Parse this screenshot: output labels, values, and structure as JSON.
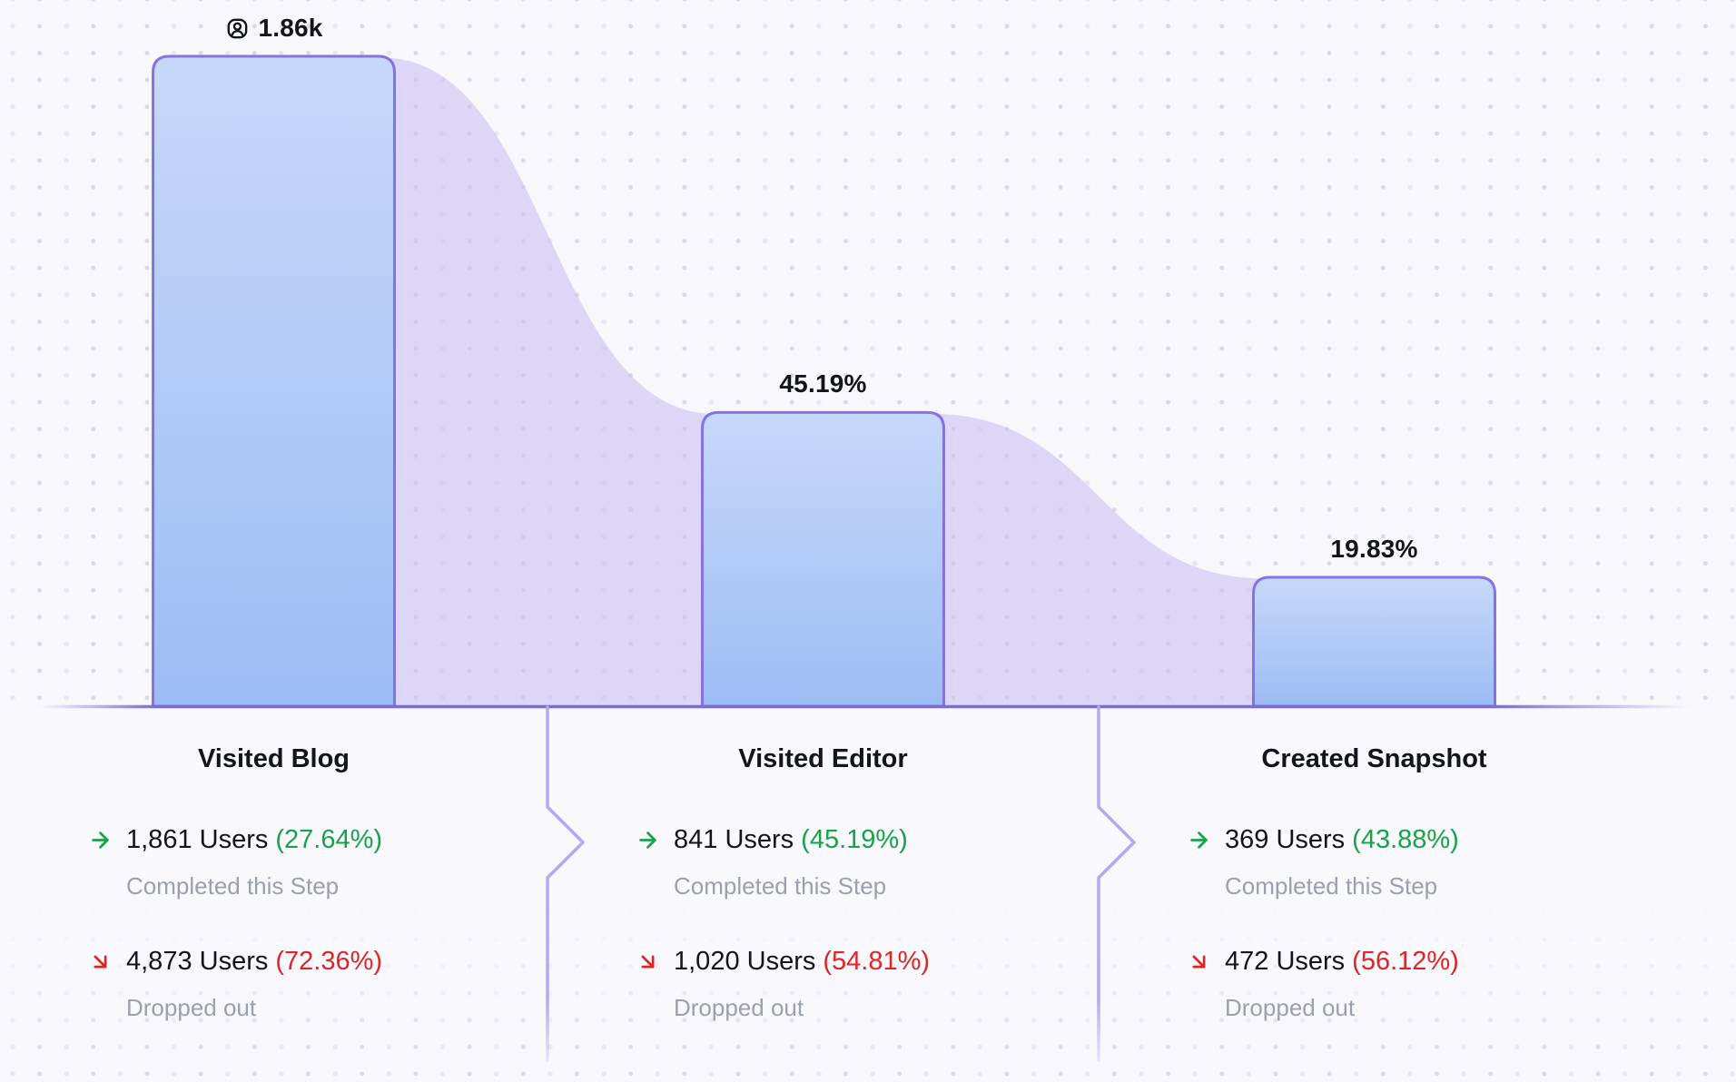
{
  "chart_data": {
    "type": "funnel",
    "title": "",
    "unit": "Users",
    "max_value": 1861,
    "steps": [
      {
        "name": "Visited Blog",
        "users": 1861,
        "bar_label": "1.86k",
        "completed_text": "1,861 Users",
        "completed_pct": "(27.64%)",
        "dropped_text": "4,873 Users",
        "dropped_pct": "(72.36%)"
      },
      {
        "name": "Visited Editor",
        "users": 841,
        "bar_label": "45.19%",
        "completed_text": "841 Users",
        "completed_pct": "(45.19%)",
        "dropped_text": "1,020 Users",
        "dropped_pct": "(54.81%)"
      },
      {
        "name": "Created Snapshot",
        "users": 369,
        "bar_label": "19.83%",
        "completed_text": "369 Users",
        "completed_pct": "(43.88%)",
        "dropped_text": "472 Users",
        "dropped_pct": "(56.12%)"
      }
    ],
    "captions": {
      "completed": "Completed this Step",
      "dropped": "Dropped out"
    },
    "icons": {
      "first_bar": "users-icon",
      "completed": "arrow-right-icon",
      "dropped": "arrow-down-right-icon"
    },
    "colors": {
      "bar_top": "#c7d8fa",
      "bar_bottom": "#9dbcf4",
      "bar_border": "#8573e2",
      "band": "rgba(199,187,242,0.55)",
      "baseline": "#7b6ad8",
      "divider": "#b3a8f1",
      "green": "#16a34a",
      "red": "#dc2626",
      "gray": "#9aa0ad",
      "ink": "#13151c",
      "background": "#f8f7fb"
    },
    "layout_hints": {
      "legend": false,
      "grid": "dotted",
      "baseline": true,
      "bar_corner_radius": 18
    }
  }
}
